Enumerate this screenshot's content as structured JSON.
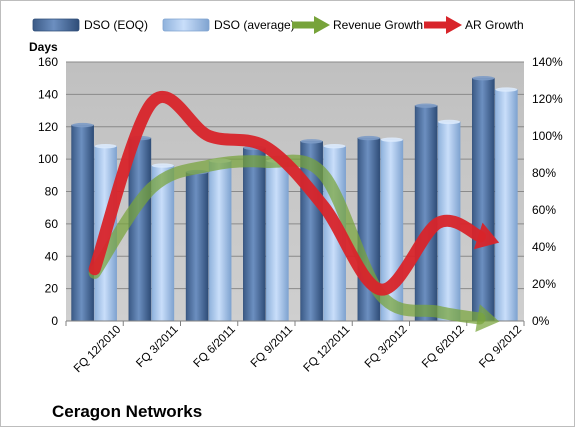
{
  "chart_data": {
    "type": "bar",
    "title": "Ceragon Networks",
    "ylabel": "Days",
    "ylim": [
      0,
      160
    ],
    "y_ticks": [
      0,
      20,
      40,
      60,
      80,
      100,
      120,
      140,
      160
    ],
    "y2lim": [
      0,
      140
    ],
    "y2_ticks": [
      "0%",
      "20%",
      "40%",
      "60%",
      "80%",
      "100%",
      "120%",
      "140%"
    ],
    "categories": [
      "FQ 12/2010",
      "FQ 3/2011",
      "FQ 6/2011",
      "FQ 9/2011",
      "FQ 12/2011",
      "FQ 3/2012",
      "FQ 6/2012",
      "FQ 9/2012"
    ],
    "grid": true,
    "legend": "top",
    "series": [
      {
        "name": "DSO (EOQ)",
        "type": "bar",
        "axis": "left",
        "color": "#4f6f9c",
        "values": [
          121,
          113,
          92,
          107,
          111,
          113,
          133,
          150
        ]
      },
      {
        "name": "DSO (average)",
        "type": "bar",
        "axis": "left",
        "color": "#a9c6ec",
        "values": [
          108,
          96,
          99,
          99,
          108,
          112,
          123,
          143
        ]
      },
      {
        "name": "Revenue Growth",
        "type": "line",
        "axis": "right",
        "unit": "%",
        "color": "#77a33a",
        "values": [
          26,
          72,
          84,
          86,
          79,
          14,
          5,
          0
        ]
      },
      {
        "name": "AR Growth",
        "type": "line",
        "axis": "right",
        "unit": "%",
        "color": "#d8242a",
        "values": [
          28,
          118,
          100,
          94,
          62,
          17,
          53,
          43
        ]
      }
    ]
  }
}
